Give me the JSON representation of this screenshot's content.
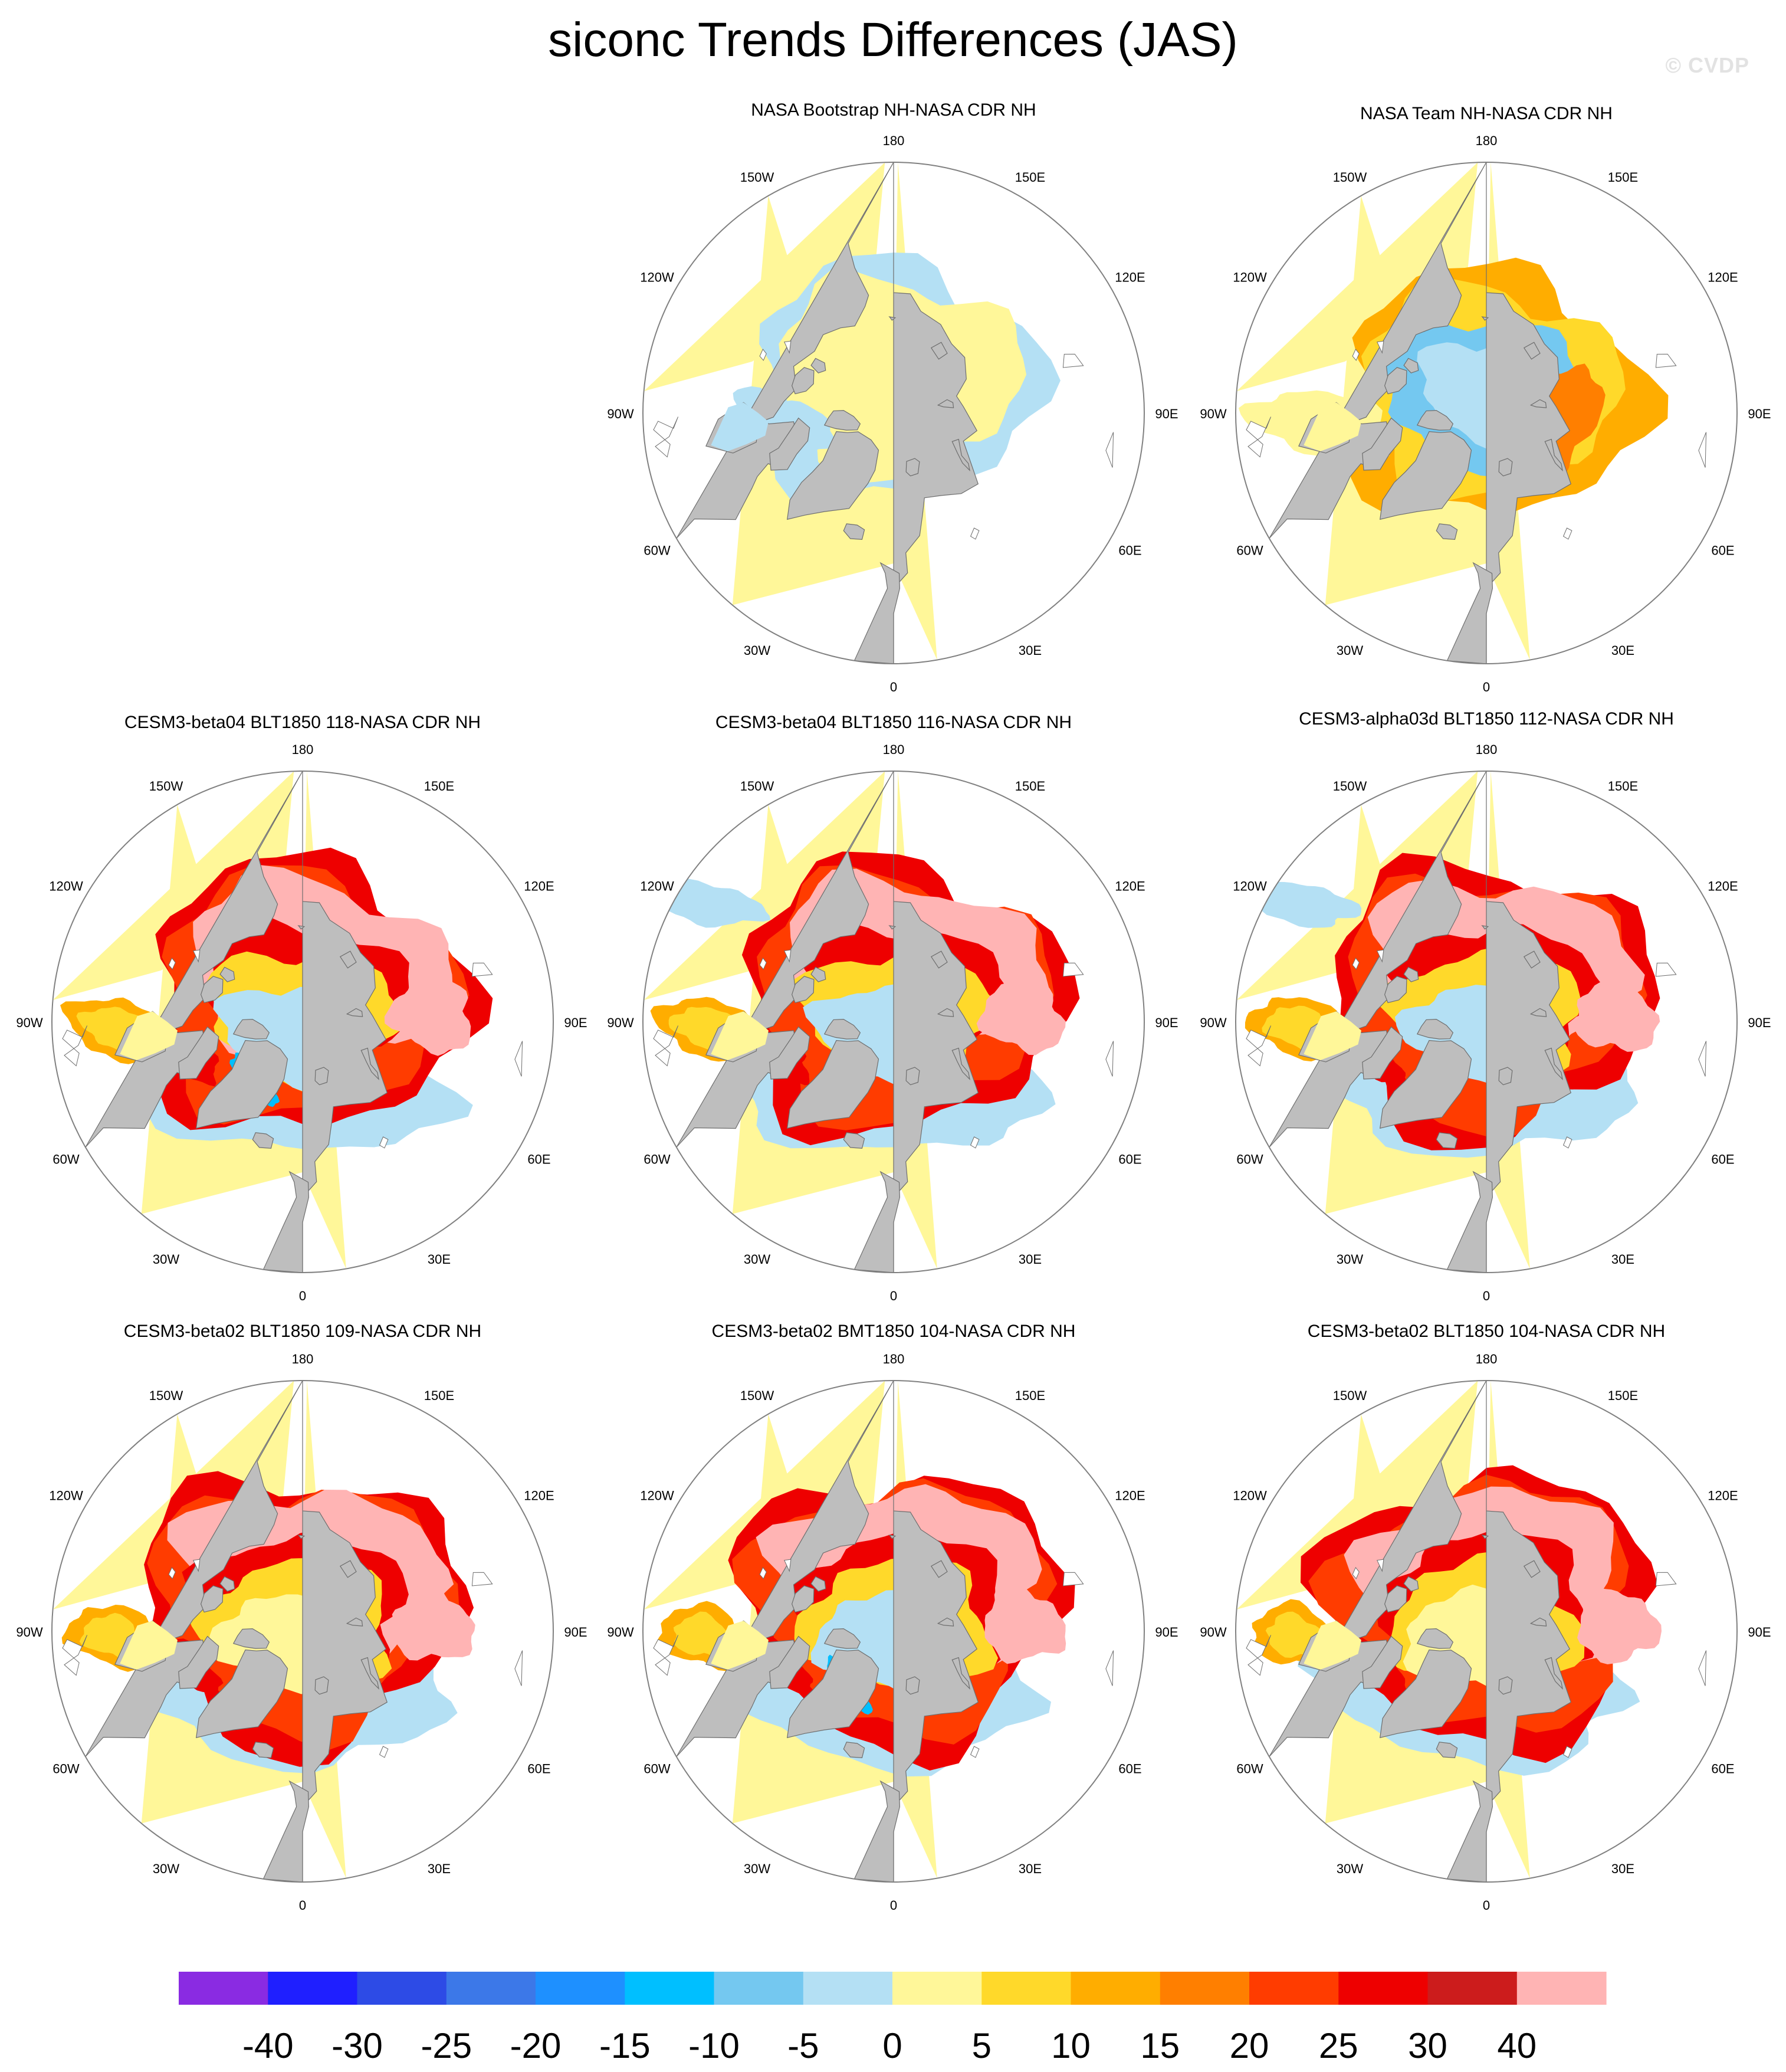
{
  "title": "siconc Trends Differences (JAS)",
  "watermark": "© CVDP",
  "panels": [
    {
      "title": "NASA Bootstrap NH-NASA CDR NH",
      "pattern": "obs_bootstrap"
    },
    {
      "title": "NASA Team NH-NASA CDR NH",
      "pattern": "obs_team"
    },
    {
      "title": "CESM3-beta04 BLT1850 118-NASA CDR NH",
      "pattern": "model_a"
    },
    {
      "title": "CESM3-beta04 BLT1850 116-NASA CDR NH",
      "pattern": "model_b"
    },
    {
      "title": "CESM3-alpha03d BLT1850 112-NASA CDR NH",
      "pattern": "model_c"
    },
    {
      "title": "CESM3-beta02 BLT1850 109-NASA CDR NH",
      "pattern": "model_d"
    },
    {
      "title": "CESM3-beta02 BMT1850 104-NASA CDR NH",
      "pattern": "model_e"
    },
    {
      "title": "CESM3-beta02 BLT1850 104-NASA CDR NH",
      "pattern": "model_f"
    }
  ],
  "lon_labels": [
    "180",
    "150E",
    "120E",
    "90E",
    "60E",
    "30E",
    "0",
    "30W",
    "60W",
    "90W",
    "120W",
    "150W"
  ],
  "colorbar": {
    "colors": [
      "#8a2be2",
      "#1f1fff",
      "#2d4be6",
      "#3c78e8",
      "#1e90ff",
      "#00bfff",
      "#74c8f0",
      "#b4e0f4",
      "#fff799",
      "#ffd92a",
      "#ffad00",
      "#ff7f00",
      "#ff3c00",
      "#ee0000",
      "#cc1c1c",
      "#ffb4b4"
    ],
    "tick_labels": [
      "-40",
      "-30",
      "-25",
      "-20",
      "-15",
      "-10",
      "-5",
      "0",
      "5",
      "10",
      "15",
      "20",
      "25",
      "30",
      "40"
    ]
  },
  "colors": {
    "land": "#bebebe",
    "outline": "#808080",
    "missing": "#ffffff"
  }
}
